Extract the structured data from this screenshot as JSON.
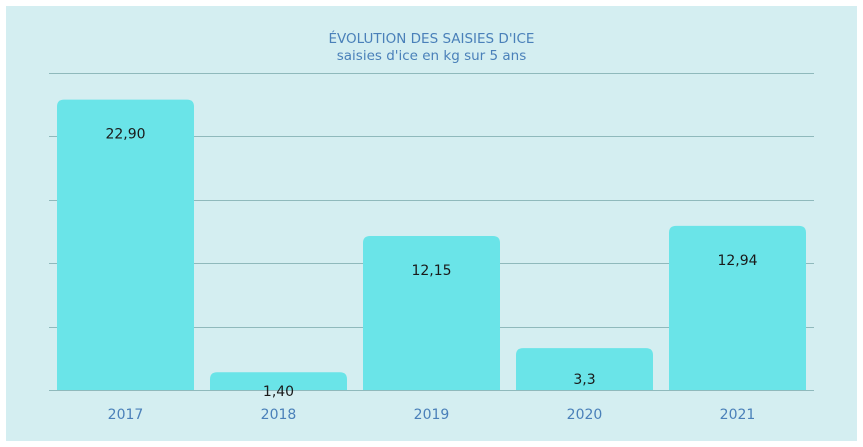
{
  "colors": {
    "background": "#d4eef1",
    "bar": "#6ae4e8",
    "grid": "#8fb9bc",
    "title": "#4a80b9",
    "tick": "#4a80b9",
    "data_label": "#1a1a1a"
  },
  "chart_data": {
    "type": "bar",
    "title": "ÉVOLUTION DES SAISIES D'ICE",
    "subtitle": "saisies d'ice en kg sur 5 ans",
    "categories": [
      "2017",
      "2018",
      "2019",
      "2020",
      "2021"
    ],
    "values": [
      22.9,
      1.4,
      12.15,
      3.3,
      12.94
    ],
    "data_labels": [
      "22,90",
      "1,40",
      "12,15",
      "3,3",
      "12,94"
    ],
    "xlabel": "",
    "ylabel": "",
    "ylim": [
      0,
      25
    ],
    "y_axis_labels_shown": false,
    "grid": true,
    "legend": "none"
  }
}
